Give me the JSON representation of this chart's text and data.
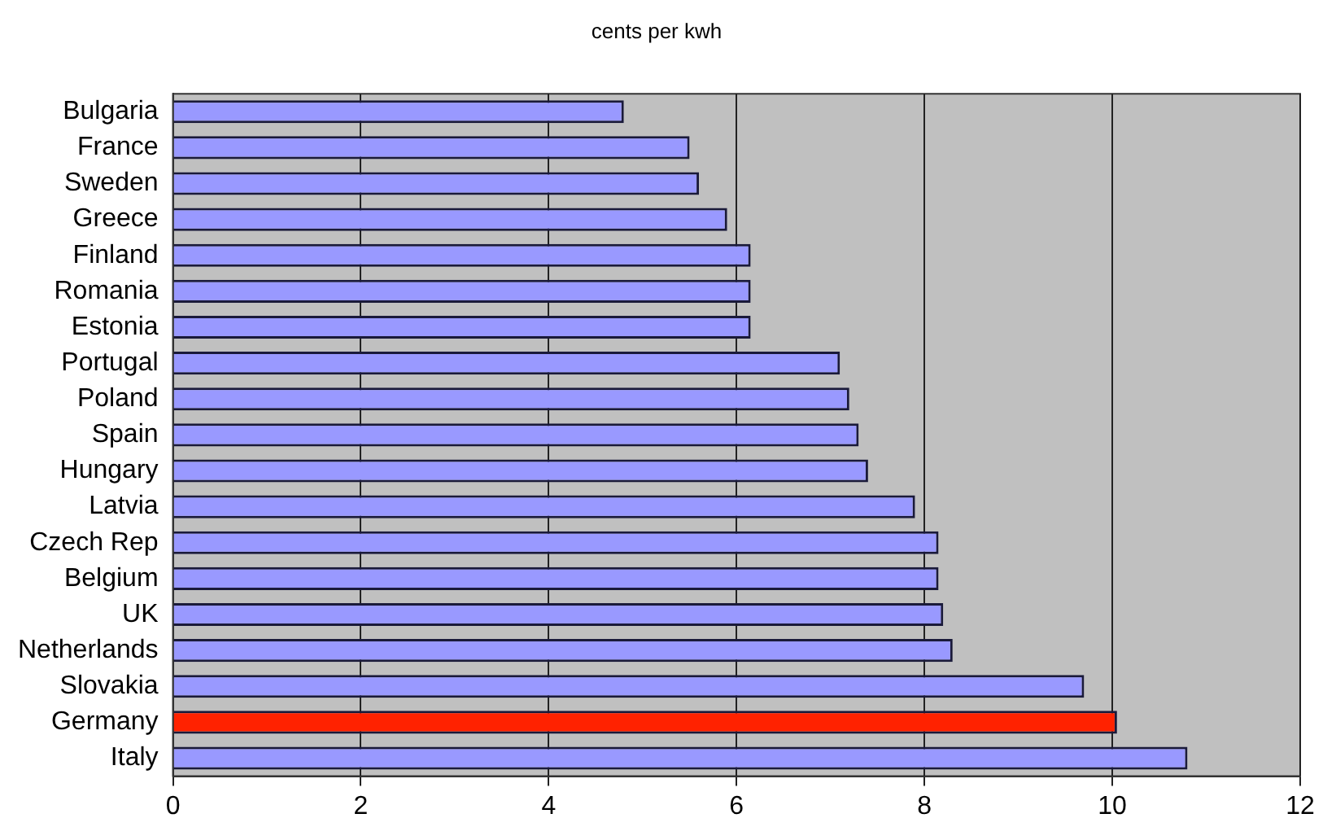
{
  "chart_data": {
    "type": "bar",
    "orientation": "horizontal",
    "title": "cents per kwh",
    "categories": [
      "Bulgaria",
      "France",
      "Sweden",
      "Greece",
      "Finland",
      "Romania",
      "Estonia",
      "Portugal",
      "Poland",
      "Spain",
      "Hungary",
      "Latvia",
      "Czech Rep",
      "Belgium",
      "UK",
      "Netherlands",
      "Slovakia",
      "Germany",
      "Italy"
    ],
    "values": [
      4.8,
      5.5,
      5.6,
      5.9,
      6.15,
      6.15,
      6.15,
      7.1,
      7.2,
      7.3,
      7.4,
      7.9,
      8.15,
      8.15,
      8.2,
      8.3,
      9.7,
      10.05,
      10.8
    ],
    "colors": [
      "#9999ff",
      "#9999ff",
      "#9999ff",
      "#9999ff",
      "#9999ff",
      "#9999ff",
      "#9999ff",
      "#9999ff",
      "#9999ff",
      "#9999ff",
      "#9999ff",
      "#9999ff",
      "#9999ff",
      "#9999ff",
      "#9999ff",
      "#9999ff",
      "#9999ff",
      "#ff2200",
      "#9999ff"
    ],
    "xlim": [
      0,
      12
    ],
    "xticks": [
      0,
      2,
      4,
      6,
      8,
      10,
      12
    ],
    "grid": "x",
    "legend": false
  }
}
